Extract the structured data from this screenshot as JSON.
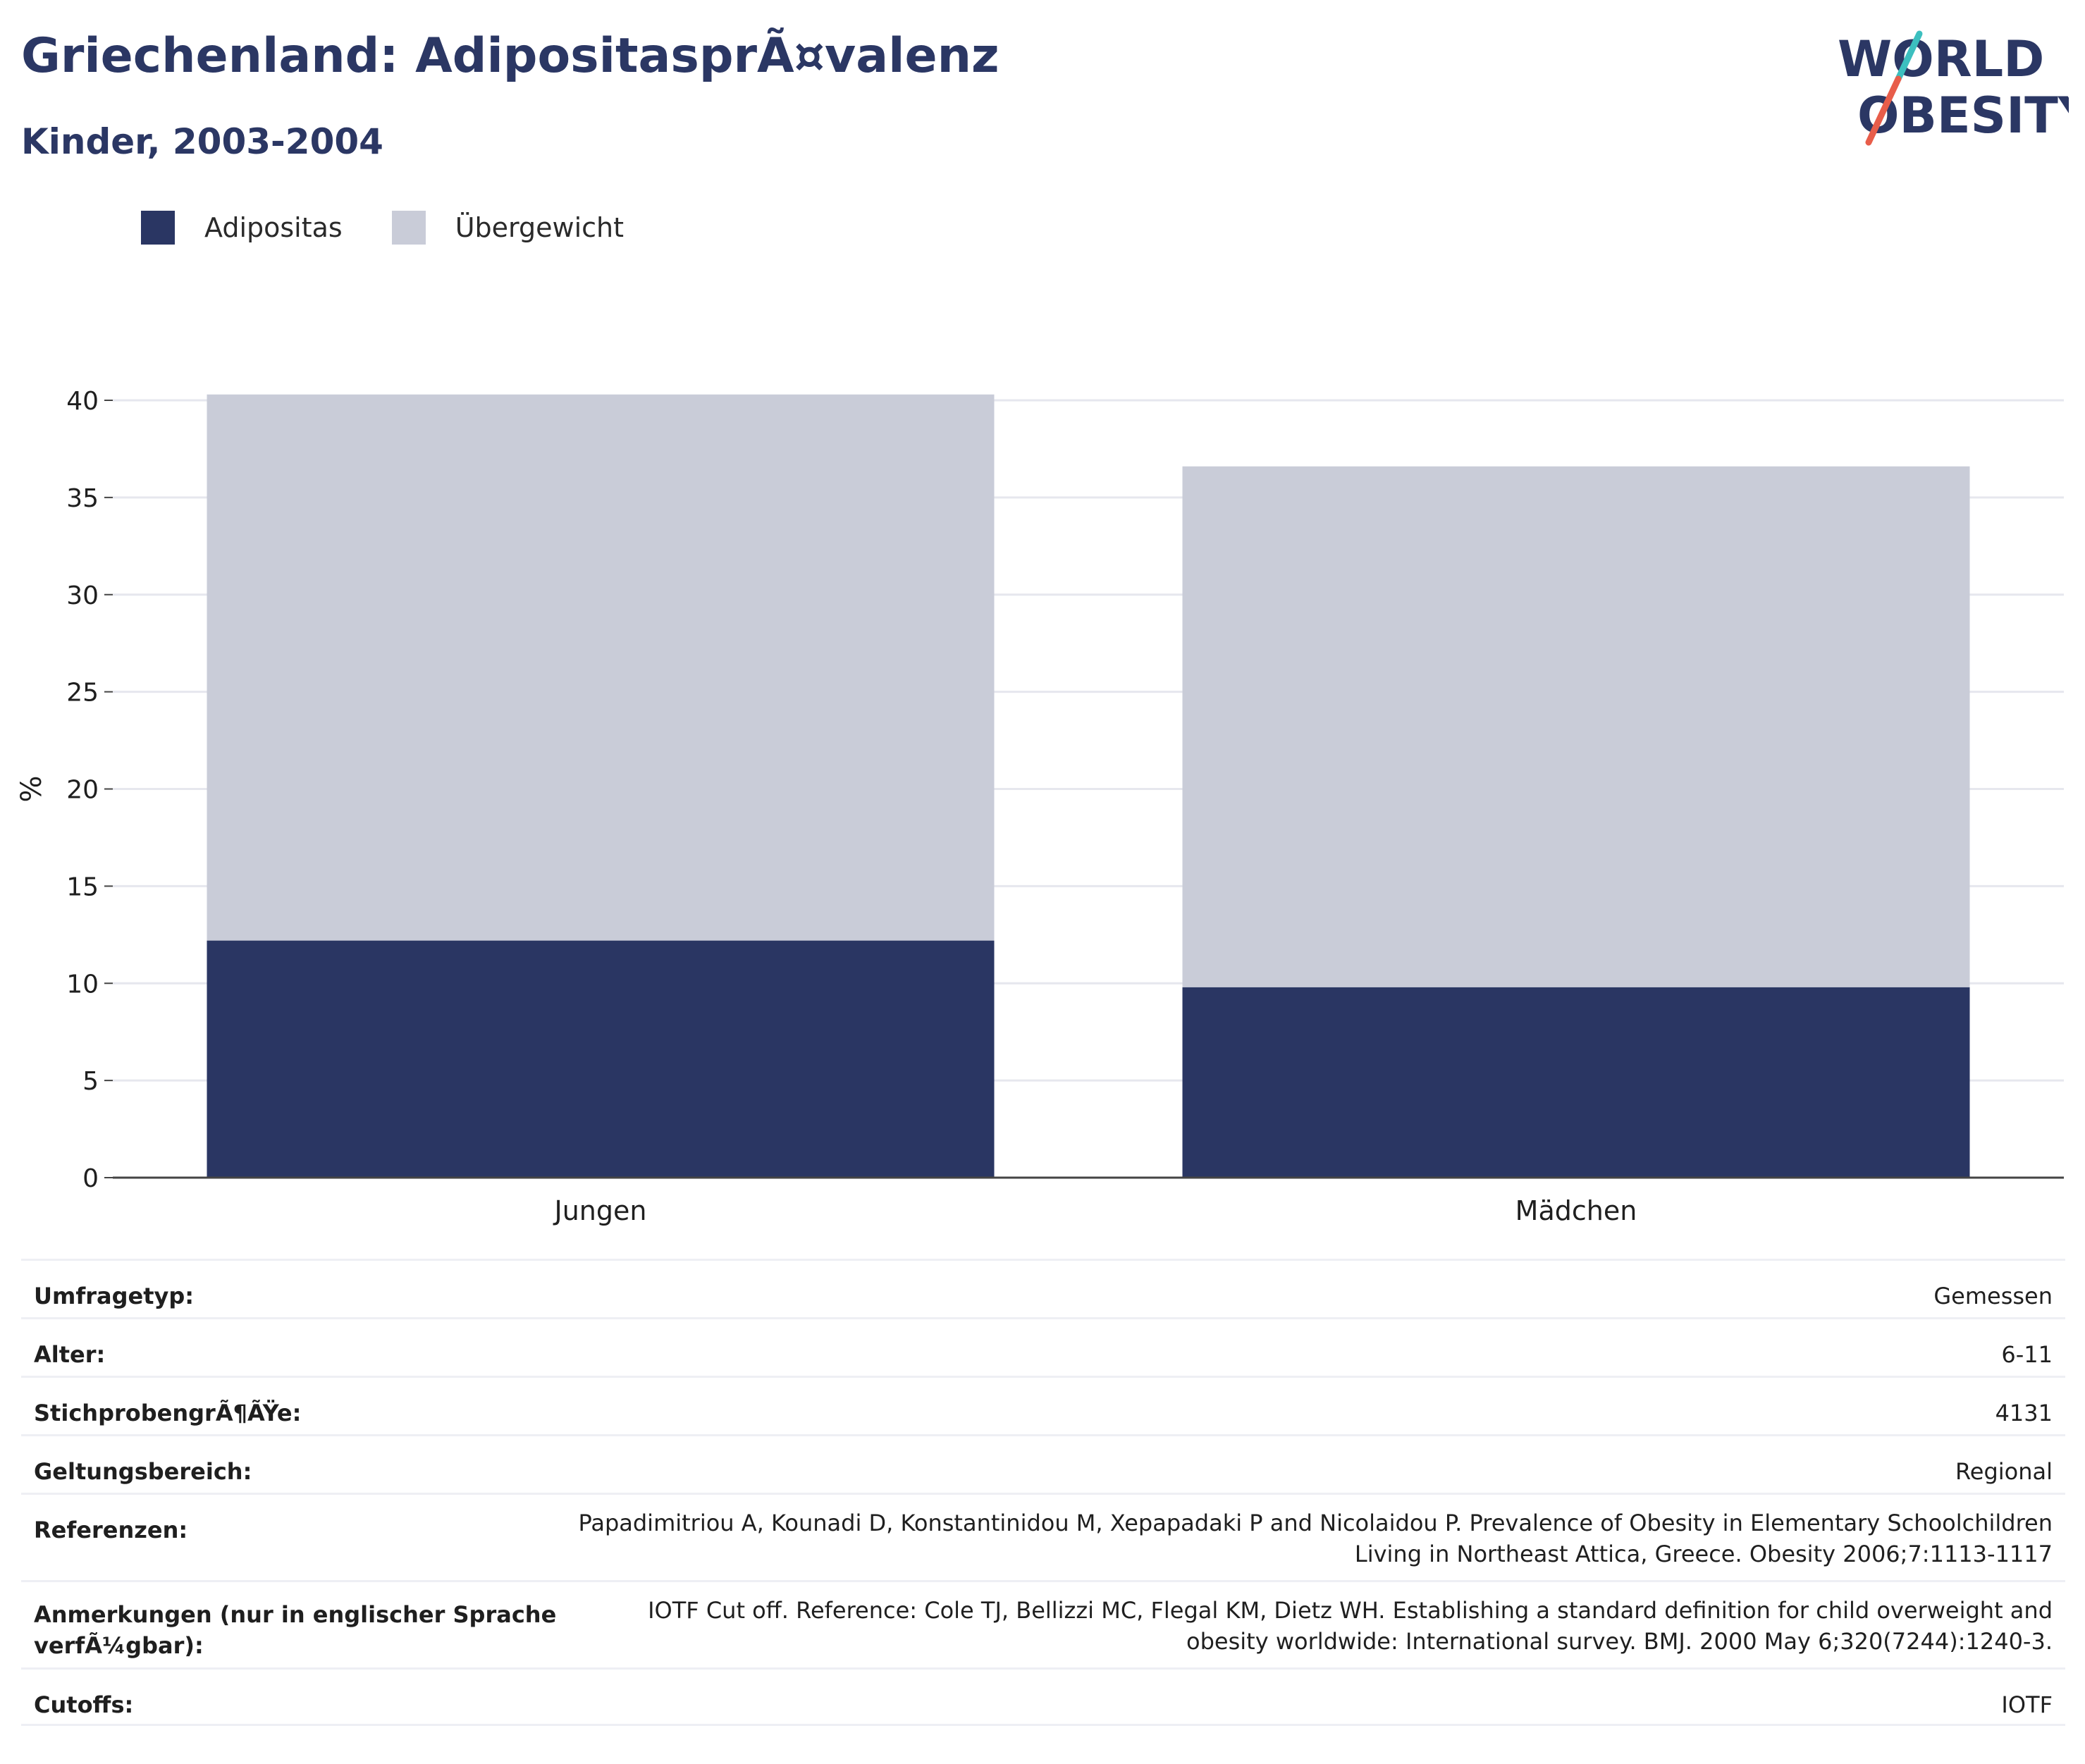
{
  "header": {
    "title": "Griechenland: AdipositasprÃ¤valenz",
    "subtitle": "Kinder, 2003-2004"
  },
  "logo": {
    "line1": "WORLD",
    "line2": "OBESITY"
  },
  "colors": {
    "adipositas": "#2a3663",
    "uebergewicht": "#c9ccd8",
    "text": "#2b3764",
    "grid": "#e6e7ee"
  },
  "legend": [
    {
      "label": "Adipositas",
      "color": "#2a3663"
    },
    {
      "label": "Übergewicht",
      "color": "#c9ccd8"
    }
  ],
  "chart_data": {
    "type": "bar",
    "stacked": true,
    "categories": [
      "Jungen",
      "Mädchen"
    ],
    "series": [
      {
        "name": "Adipositas",
        "values": [
          12.2,
          9.8
        ]
      },
      {
        "name": "Übergewicht",
        "values": [
          28.1,
          26.8
        ]
      }
    ],
    "ylabel": "%",
    "ylim": [
      0,
      40
    ],
    "yticks": [
      0,
      5,
      10,
      15,
      20,
      25,
      30,
      35,
      40
    ],
    "grid": true,
    "legend_position": "top-left"
  },
  "meta": [
    {
      "label": "Umfragetyp:",
      "value": "Gemessen"
    },
    {
      "label": "Alter:",
      "value": "6-11"
    },
    {
      "label": "StichprobengrÃ¶ÃŸe:",
      "value": "4131"
    },
    {
      "label": "Geltungsbereich:",
      "value": "Regional"
    },
    {
      "label": "Referenzen:",
      "value": "Papadimitriou A, Kounadi D, Konstantinidou M, Xepapadaki P and Nicolaidou P. Prevalence of Obesity in Elementary Schoolchildren Living in Northeast Attica, Greece. Obesity 2006;7:1113-1117"
    },
    {
      "label": "Anmerkungen (nur in englischer Sprache verfÃ¼gbar):",
      "value": "IOTF Cut off. Reference: Cole TJ, Bellizzi MC, Flegal KM, Dietz WH. Establishing a standard definition for child overweight and obesity worldwide: International survey. BMJ. 2000 May 6;320(7244):1240-3."
    },
    {
      "label": "Cutoffs:",
      "value": "IOTF"
    }
  ]
}
